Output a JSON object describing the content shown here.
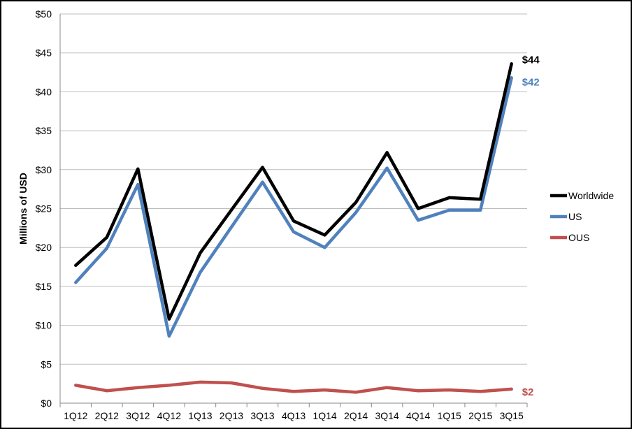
{
  "chart_data": {
    "type": "line",
    "title": "",
    "xlabel": "",
    "ylabel": "Millions of USD",
    "ylim": [
      0,
      50
    ],
    "yticks": [
      "$0",
      "$5",
      "$10",
      "$15",
      "$20",
      "$25",
      "$30",
      "$35",
      "$40",
      "$45",
      "$50"
    ],
    "ytick_values": [
      0,
      5,
      10,
      15,
      20,
      25,
      30,
      35,
      40,
      45,
      50
    ],
    "categories": [
      "1Q12",
      "2Q12",
      "3Q12",
      "4Q12",
      "1Q13",
      "2Q13",
      "3Q13",
      "4Q13",
      "1Q14",
      "2Q14",
      "3Q14",
      "4Q14",
      "1Q15",
      "2Q15",
      "3Q15"
    ],
    "grid": true,
    "legend_position": "right",
    "series": [
      {
        "name": "Worldwide",
        "color": "#000000",
        "values": [
          17.7,
          21.3,
          30.1,
          10.8,
          19.3,
          24.8,
          30.3,
          23.4,
          21.6,
          25.8,
          32.2,
          25.0,
          26.4,
          26.2,
          43.6
        ],
        "end_label": "$44"
      },
      {
        "name": "US",
        "color": "#4f81bd",
        "values": [
          15.5,
          19.9,
          28.1,
          8.6,
          16.8,
          22.6,
          28.4,
          22.0,
          20.0,
          24.5,
          30.2,
          23.5,
          24.8,
          24.8,
          41.8
        ],
        "end_label": "$42"
      },
      {
        "name": "OUS",
        "color": "#c0504d",
        "values": [
          2.3,
          1.6,
          2.0,
          2.3,
          2.7,
          2.6,
          1.9,
          1.5,
          1.7,
          1.4,
          2.0,
          1.6,
          1.7,
          1.5,
          1.8
        ],
        "end_label": "$2"
      }
    ]
  }
}
